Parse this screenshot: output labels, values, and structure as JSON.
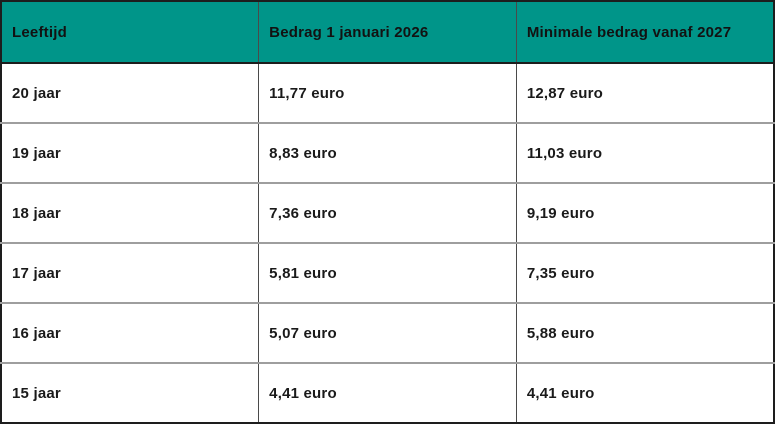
{
  "chart_data": {
    "type": "table",
    "columns": [
      "Leeftijd",
      "Bedrag 1 januari 2026",
      "Minimale bedrag vanaf 2027"
    ],
    "rows": [
      [
        "20 jaar",
        "11,77 euro",
        "12,87 euro"
      ],
      [
        "19 jaar",
        "8,83 euro",
        "11,03 euro"
      ],
      [
        "18 jaar",
        "7,36 euro",
        "9,19 euro"
      ],
      [
        "17 jaar",
        "5,81 euro",
        "7,35 euro"
      ],
      [
        "16 jaar",
        "5,07 euro",
        "5,88 euro"
      ],
      [
        "15 jaar",
        "4,41 euro",
        "4,41 euro"
      ]
    ]
  },
  "colors": {
    "header_background": "#009589",
    "header_text": "#121212",
    "body_text": "#1a1a1a",
    "outer_border": "#1d1d1d",
    "column_divider": "#4a4a4a",
    "row_divider": "#9e9e9e"
  }
}
